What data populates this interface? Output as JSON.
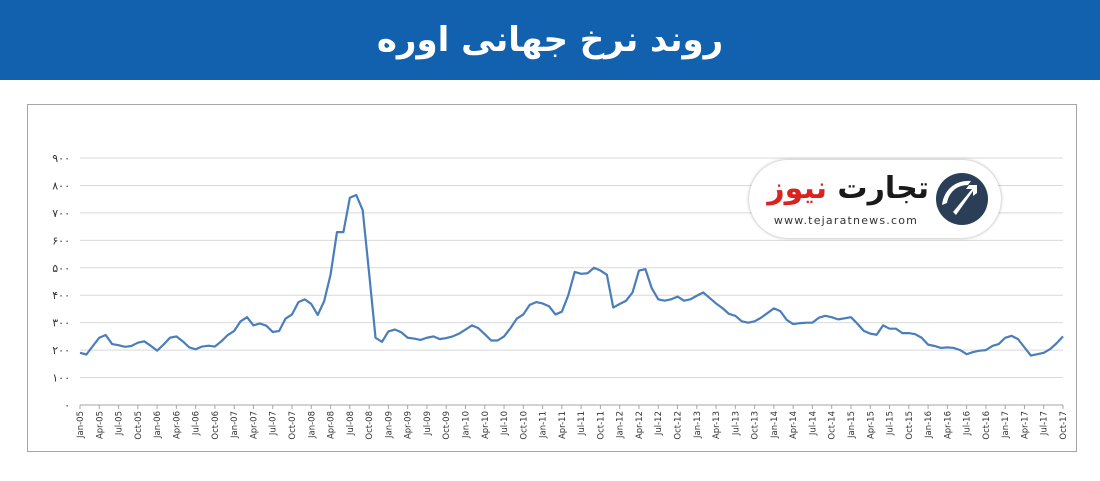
{
  "header": {
    "title": "روند نرخ جهانی اوره"
  },
  "logo": {
    "name_part1": "تجارت",
    "name_part2": "نیوز",
    "url": "www.tejaratnews.com"
  },
  "colors": {
    "banner": "#1261ae",
    "line": "#4a7ebb",
    "grid": "#d9d9d9",
    "logo_red": "#d9231f"
  },
  "chart_data": {
    "type": "line",
    "title": "",
    "xlabel": "",
    "ylabel": "",
    "ylim": [
      0,
      900
    ],
    "yticks": [
      0,
      100,
      200,
      300,
      400,
      500,
      600,
      700,
      800,
      900
    ],
    "ytick_labels": [
      "۰",
      "۱۰۰",
      "۲۰۰",
      "۳۰۰",
      "۴۰۰",
      "۵۰۰",
      "۶۰۰",
      "۷۰۰",
      "۸۰۰",
      "۹۰۰"
    ],
    "grid": true,
    "legend": "none",
    "x_labels": [
      "Jan-05",
      "Apr-05",
      "Jul-05",
      "Oct-05",
      "Jan-06",
      "Apr-06",
      "Jul-06",
      "Oct-06",
      "Jan-07",
      "Apr-07",
      "Jul-07",
      "Oct-07",
      "Jan-08",
      "Apr-08",
      "Jul-08",
      "Oct-08",
      "Jan-09",
      "Apr-09",
      "Jul-09",
      "Oct-09",
      "Jan-10",
      "Apr-10",
      "Jul-10",
      "Oct-10",
      "Jan-11",
      "Apr-11",
      "Jul-11",
      "Oct-11",
      "Jan-12",
      "Apr-12",
      "Jul-12",
      "Oct-12",
      "Jan-13",
      "Apr-13",
      "Jul-13",
      "Oct-13",
      "Jan-14",
      "Apr-14",
      "Jul-14",
      "Oct-14",
      "Jan-15",
      "Apr-15",
      "Jul-15",
      "Oct-15",
      "Jan-16",
      "Apr-16",
      "Jul-16",
      "Oct-16",
      "Jan-17",
      "Apr-17",
      "Jul-17",
      "Oct-17"
    ],
    "series": [
      {
        "values": [
          190,
          184,
          215,
          245,
          255,
          222,
          218,
          212,
          215,
          227,
          232,
          216,
          198,
          220,
          245,
          250,
          232,
          210,
          203,
          213,
          216,
          213,
          232,
          255,
          270,
          305,
          320,
          290,
          297,
          289,
          266,
          270,
          315,
          330,
          375,
          385,
          368,
          328,
          378,
          475,
          630,
          630,
          755,
          765,
          710,
          480,
          245,
          230,
          268,
          275,
          265,
          245,
          242,
          237,
          245,
          250,
          240,
          244,
          250,
          260,
          275,
          290,
          280,
          258,
          235,
          235,
          250,
          280,
          315,
          330,
          365,
          375,
          370,
          360,
          330,
          340,
          400,
          485,
          478,
          480,
          500,
          490,
          475,
          355,
          368,
          380,
          410,
          490,
          495,
          425,
          385,
          380,
          385,
          395,
          380,
          385,
          398,
          410,
          390,
          370,
          353,
          332,
          325,
          305,
          300,
          305,
          318,
          335,
          352,
          342,
          310,
          295,
          298,
          300,
          300,
          318,
          325,
          320,
          312,
          316,
          320,
          296,
          270,
          260,
          256,
          290,
          278,
          278,
          262,
          262,
          258,
          245,
          220,
          215,
          208,
          210,
          208,
          200,
          185,
          193,
          198,
          200,
          215,
          222,
          245,
          252,
          240,
          210,
          180,
          185,
          190,
          204,
          225,
          250
        ]
      }
    ]
  }
}
